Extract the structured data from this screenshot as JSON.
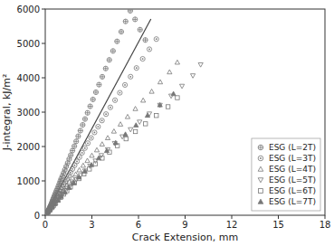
{
  "chart_data": {
    "type": "scatter",
    "xlabel": "Crack Extension, mm",
    "ylabel": "J-integral, kJ/m²",
    "xlim": [
      0,
      18
    ],
    "ylim": [
      0,
      6000
    ],
    "xticks": [
      0,
      3,
      6,
      9,
      12,
      15,
      18
    ],
    "yticks": [
      0,
      1000,
      2000,
      3000,
      4000,
      5000,
      6000
    ],
    "legend": "lower right",
    "series": [
      {
        "name": "ESG (L=2T)",
        "marker": "circle_plus",
        "color": "#777777",
        "x": [
          0.05,
          0.08,
          0.1,
          0.12,
          0.15,
          0.18,
          0.2,
          0.22,
          0.25,
          0.28,
          0.3,
          0.33,
          0.36,
          0.4,
          0.43,
          0.46,
          0.5,
          0.54,
          0.58,
          0.62,
          0.67,
          0.72,
          0.78,
          0.84,
          0.9,
          0.96,
          1.02,
          1.1,
          1.18,
          1.26,
          1.35,
          1.44,
          1.54,
          1.64,
          1.75,
          1.87,
          1.99,
          2.12,
          2.26,
          2.41,
          2.56,
          2.72,
          2.89,
          3.07,
          3.26,
          3.46,
          3.67,
          3.89,
          4.12,
          4.36,
          4.62,
          4.89,
          5.17,
          5.47,
          5.78,
          6.1,
          6.44
        ],
        "values": [
          30,
          50,
          65,
          80,
          100,
          120,
          140,
          160,
          185,
          210,
          240,
          270,
          300,
          340,
          375,
          415,
          460,
          505,
          550,
          600,
          655,
          710,
          770,
          840,
          910,
          985,
          1060,
          1140,
          1230,
          1320,
          1420,
          1520,
          1635,
          1750,
          1880,
          2010,
          2150,
          2300,
          2460,
          2630,
          2800,
          2980,
          3170,
          3370,
          3580,
          3800,
          4030,
          4270,
          4520,
          4780,
          5060,
          5340,
          5640,
          5950,
          5700,
          5400,
          5100
        ]
      },
      {
        "name": "ESG (L=3T)",
        "marker": "circle_dot",
        "color": "#777777",
        "x": [
          0.06,
          0.09,
          0.12,
          0.15,
          0.18,
          0.21,
          0.25,
          0.29,
          0.33,
          0.37,
          0.42,
          0.47,
          0.52,
          0.58,
          0.64,
          0.7,
          0.77,
          0.84,
          0.92,
          1.0,
          1.09,
          1.18,
          1.28,
          1.39,
          1.5,
          1.62,
          1.75,
          1.89,
          2.04,
          2.2,
          2.37,
          2.55,
          2.74,
          2.95,
          3.17,
          3.4,
          3.65,
          3.91,
          4.19,
          4.49,
          4.8,
          5.13,
          5.49,
          5.87,
          6.27,
          6.7,
          7.15
        ],
        "values": [
          35,
          55,
          75,
          95,
          115,
          138,
          165,
          192,
          222,
          255,
          290,
          328,
          368,
          412,
          460,
          510,
          564,
          622,
          684,
          750,
          820,
          895,
          974,
          1058,
          1148,
          1244,
          1346,
          1454,
          1568,
          1690,
          1818,
          1954,
          2098,
          2250,
          2410,
          2578,
          2756,
          2943,
          3140,
          3347,
          3564,
          3792,
          4032,
          4285,
          4551,
          4831,
          5126
        ]
      },
      {
        "name": "ESG (L=4T)",
        "marker": "triangle_up",
        "color": "#777777",
        "x": [
          0.1,
          0.15,
          0.2,
          0.26,
          0.32,
          0.39,
          0.46,
          0.54,
          0.63,
          0.73,
          0.84,
          0.96,
          1.09,
          1.23,
          1.39,
          1.56,
          1.75,
          1.96,
          2.19,
          2.44,
          2.71,
          3.0,
          3.32,
          3.66,
          4.02,
          4.42,
          4.84,
          5.3,
          5.8,
          6.3,
          6.85,
          7.4,
          8.0,
          8.5
        ],
        "values": [
          55,
          85,
          118,
          156,
          198,
          244,
          295,
          350,
          410,
          475,
          545,
          620,
          700,
          785,
          877,
          976,
          1082,
          1196,
          1318,
          1450,
          1590,
          1740,
          1900,
          2070,
          2252,
          2445,
          2650,
          2868,
          3100,
          3345,
          3604,
          3878,
          4168,
          4450
        ]
      },
      {
        "name": "ESG (L=5T)",
        "marker": "triangle_down",
        "color": "#777777",
        "x": [
          0.15,
          0.22,
          0.3,
          0.39,
          0.49,
          0.6,
          0.72,
          0.85,
          1.0,
          1.16,
          1.34,
          1.54,
          1.76,
          2.0,
          2.27,
          2.56,
          2.88,
          3.23,
          3.61,
          4.02,
          4.47,
          4.96,
          5.49,
          6.07,
          6.7,
          7.38,
          8.1,
          8.8,
          9.5,
          10.0
        ],
        "values": [
          80,
          120,
          165,
          215,
          270,
          330,
          396,
          467,
          544,
          628,
          718,
          816,
          922,
          1036,
          1158,
          1290,
          1430,
          1580,
          1740,
          1910,
          2092,
          2286,
          2493,
          2714,
          2950,
          3202,
          3470,
          3756,
          4060,
          4380
        ]
      },
      {
        "name": "ESG (L=6T)",
        "marker": "square",
        "color": "#777777",
        "x": [
          0.2,
          0.3,
          0.41,
          0.53,
          0.67,
          0.82,
          0.99,
          1.18,
          1.39,
          1.62,
          1.88,
          2.17,
          2.49,
          2.84,
          3.23,
          3.66,
          4.13,
          4.64,
          5.2,
          5.8,
          6.45,
          7.15,
          7.9,
          8.5
        ],
        "values": [
          105,
          160,
          220,
          285,
          358,
          436,
          521,
          614,
          714,
          823,
          940,
          1065,
          1200,
          1344,
          1498,
          1662,
          1837,
          2024,
          2223,
          2435,
          2661,
          2902,
          3158,
          3420
        ]
      },
      {
        "name": "ESG (L=7T)",
        "marker": "triangle_up_star",
        "color": "#777777",
        "x": [
          0.3,
          0.45,
          0.62,
          0.81,
          1.02,
          1.26,
          1.53,
          1.83,
          2.17,
          2.55,
          2.97,
          3.44,
          3.96,
          4.53,
          5.16,
          5.84,
          6.58,
          7.38,
          8.25
        ],
        "values": [
          160,
          242,
          334,
          436,
          548,
          671,
          806,
          952,
          1110,
          1282,
          1467,
          1666,
          1880,
          2110,
          2357,
          2622,
          2906,
          3210,
          3534
        ]
      },
      {
        "type": "line",
        "color": "#444444",
        "x": [
          0.0,
          6.8
        ],
        "values": [
          0,
          5712
        ]
      }
    ]
  }
}
